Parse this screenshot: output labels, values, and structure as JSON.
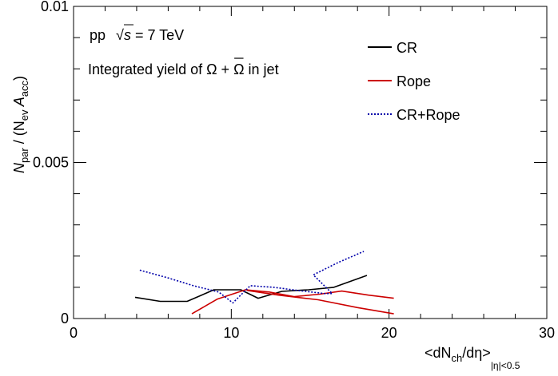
{
  "chart_data": {
    "type": "line",
    "xlim": [
      0,
      30
    ],
    "ylim": [
      0,
      0.01
    ],
    "x_ticks": [
      0,
      10,
      20,
      30
    ],
    "y_ticks": [
      0,
      0.005,
      0.01
    ],
    "x_tick_labels": [
      "0",
      "10",
      "20",
      "30"
    ],
    "y_tick_labels": [
      "0",
      "0.005",
      "0.01"
    ],
    "xlabel": {
      "pre": "<dN",
      "sub1": "ch",
      "post": "/dη>",
      "sub2": "|η|<0.5"
    },
    "ylabel": {
      "n": "N",
      "n_sub": "par",
      "mid": " / (N",
      "ev_sub": "ev",
      "a": " A",
      "a_sub": "acc",
      "close": ")"
    },
    "annotations": {
      "energy": {
        "pp": "pp",
        "sqrt": "√",
        "s": "s",
        "rest": " = 7 TeV"
      },
      "yield": {
        "pre": "Integrated yield of Ω + ",
        "bar": "Ω",
        "post": " in jet"
      }
    },
    "grid": false,
    "legend_position": "top-right",
    "series": [
      {
        "name": "CR",
        "color": "#000000",
        "dash": "solid",
        "x": [
          3.9,
          5.5,
          7.2,
          8.9,
          10.6,
          11.7,
          13.2,
          14.9,
          16.5,
          18.6
        ],
        "y": [
          0.00068,
          0.00055,
          0.00055,
          0.00092,
          0.00092,
          0.00065,
          0.00087,
          0.00092,
          0.001,
          0.00138
        ]
      },
      {
        "name": "Rope",
        "color": "#cc0000",
        "dash": "solid",
        "x": [
          7.5,
          9.1,
          10.9,
          12.4,
          14.0,
          15.6,
          17.0,
          18.7,
          20.3
        ],
        "y": [
          0.00015,
          0.00062,
          0.00092,
          0.00085,
          0.0007,
          0.00078,
          0.00088,
          0.00075,
          0.00065
        ]
      },
      {
        "name": "Rope",
        "color": "#cc0000",
        "dash": "solid",
        "x": [
          11.0,
          13.0,
          15.5,
          18.0,
          20.3
        ],
        "y": [
          0.0009,
          0.00075,
          0.0006,
          0.00035,
          0.00015
        ]
      },
      {
        "name": "CR+Rope",
        "color": "#0000aa",
        "dash": "dotted",
        "x": [
          4.2,
          6.0,
          7.6,
          9.2,
          10.1,
          11.2,
          12.7,
          14.2,
          15.9,
          16.4,
          15.2,
          16.8,
          18.4
        ],
        "y": [
          0.00155,
          0.0013,
          0.00105,
          0.00085,
          0.0005,
          0.00105,
          0.001,
          0.0009,
          0.0008,
          0.0008,
          0.0014,
          0.0018,
          0.00215
        ]
      }
    ]
  }
}
